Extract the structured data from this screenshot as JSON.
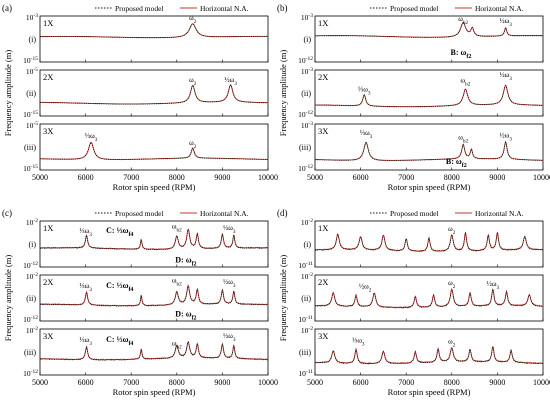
{
  "chart_data": [
    {
      "type": "line",
      "panel": "(a)",
      "ylabel": "Frequency amplitude (m)",
      "xlabel": "Rotor spin speed (RPM)",
      "legend": [
        "Proposed model",
        "Horizontal N.A."
      ],
      "xticks": [
        "5000",
        "6000",
        "7000",
        "8000",
        "9000",
        "10000"
      ],
      "xlim": [
        5000,
        10000
      ],
      "rows": [
        {
          "tag": "1X",
          "roman": "(i)",
          "ytop": "10",
          "ytop_exp": "-3",
          "ybot": "10",
          "ybot_exp": "-15",
          "ylog": [
            -15,
            -3
          ],
          "base": -8.5,
          "peaks": [
            {
              "x": 8350,
              "h": 3.6,
              "w": 90
            }
          ],
          "annotations": [
            {
              "text": "ω2",
              "x": 8350,
              "y": -4.0
            }
          ]
        },
        {
          "tag": "2X",
          "roman": "(ii)",
          "ytop": "10",
          "ytop_exp": "-5",
          "ybot": "10",
          "ybot_exp": "-15",
          "ylog": [
            -15,
            -5
          ],
          "base": -12.2,
          "peaks": [
            {
              "x": 8350,
              "h": 3.8,
              "w": 60
            },
            {
              "x": 9180,
              "h": 3.8,
              "w": 60
            }
          ],
          "annotations": [
            {
              "text": "ω2",
              "x": 8350,
              "y": -7.6
            },
            {
              "text": "½ω3",
              "x": 9180,
              "y": -7.6
            }
          ]
        },
        {
          "tag": "3X",
          "roman": "(iii)",
          "ytop": "10",
          "ytop_exp": "-5",
          "ybot": "10",
          "ybot_exp": "-15",
          "ylog": [
            -15,
            -5
          ],
          "base": -12.6,
          "peaks": [
            {
              "x": 6120,
              "h": 3.8,
              "w": 70
            },
            {
              "x": 8350,
              "h": 2.2,
              "w": 40
            }
          ],
          "annotations": [
            {
              "text": "⅓ω3",
              "x": 6120,
              "y": -8.0
            },
            {
              "text": "ω2",
              "x": 8350,
              "y": -9.6
            }
          ]
        }
      ]
    },
    {
      "type": "line",
      "panel": "(b)",
      "ylabel": "Frequency amplitude (m)",
      "xlabel": "Rotor spin speed (RPM)",
      "legend": [
        "Proposed model",
        "Horizontal N.A."
      ],
      "xticks": [
        "5000",
        "6000",
        "7000",
        "8000",
        "9000",
        "10000"
      ],
      "xlim": [
        5000,
        10000
      ],
      "rows": [
        {
          "tag": "1X",
          "roman": "(i)",
          "ytop": "10",
          "ytop_exp": "-3",
          "ybot": "10",
          "ybot_exp": "-12",
          "ylog": [
            -12,
            -3
          ],
          "base": -7.0,
          "peaks": [
            {
              "x": 8250,
              "h": 2.8,
              "w": 70
            },
            {
              "x": 8450,
              "h": 1.6,
              "w": 40
            },
            {
              "x": 9180,
              "h": 1.6,
              "w": 30
            }
          ],
          "annotations": [
            {
              "text": "ωb2",
              "x": 8250,
              "y": -4.0
            },
            {
              "text": "½ω3",
              "x": 9180,
              "y": -4.4
            },
            {
              "text": "B: ωf2",
              "x": 8200,
              "y": -10.6
            }
          ]
        },
        {
          "tag": "2X",
          "roman": "(ii)",
          "ytop": "10",
          "ytop_exp": "-3",
          "ybot": "10",
          "ybot_exp": "-12",
          "ylog": [
            -12,
            -3
          ],
          "base": -10.0,
          "peaks": [
            {
              "x": 6080,
              "h": 2.2,
              "w": 40
            },
            {
              "x": 8300,
              "h": 3.2,
              "w": 60
            },
            {
              "x": 9180,
              "h": 3.8,
              "w": 60
            }
          ],
          "annotations": [
            {
              "text": "⅓ω3",
              "x": 6080,
              "y": -7.2
            },
            {
              "text": "ωb2",
              "x": 8300,
              "y": -5.4
            },
            {
              "text": "½ω3",
              "x": 9180,
              "y": -4.4
            }
          ]
        },
        {
          "tag": "3X",
          "roman": "(iii)",
          "ytop": "10",
          "ytop_exp": "-3",
          "ybot": "10",
          "ybot_exp": "-12",
          "ylog": [
            -12,
            -3
          ],
          "base": -10.0,
          "peaks": [
            {
              "x": 6120,
              "h": 3.6,
              "w": 60
            },
            {
              "x": 8250,
              "h": 2.8,
              "w": 40
            },
            {
              "x": 8430,
              "h": 1.8,
              "w": 30
            },
            {
              "x": 9180,
              "h": 3.4,
              "w": 40
            }
          ],
          "annotations": [
            {
              "text": "⅓ω3",
              "x": 6120,
              "y": -5.2
            },
            {
              "text": "ωb2",
              "x": 8250,
              "y": -6.0
            },
            {
              "text": "½ω3",
              "x": 9180,
              "y": -5.6
            },
            {
              "text": "B: ωf2",
              "x": 8100,
              "y": -10.8
            }
          ]
        }
      ]
    },
    {
      "type": "line",
      "panel": "(c)",
      "ylabel": "Frequency amplitude (m)",
      "xlabel": "Rotor spin speed (RPM)",
      "legend": [
        "Proposed model",
        "Horizontal N.A."
      ],
      "xticks": [
        "5000",
        "6000",
        "7000",
        "8000",
        "9000",
        "10000"
      ],
      "xlim": [
        5000,
        10000
      ],
      "rows": [
        {
          "tag": "1X",
          "roman": "(i)",
          "ytop": "10",
          "ytop_exp": "-2",
          "ybot": "10",
          "ybot_exp": "-12",
          "ylog": [
            -12,
            -2
          ],
          "base": -8.0,
          "peaks": [
            {
              "x": 6020,
              "h": 2.8,
              "w": 30
            },
            {
              "x": 7220,
              "h": 2.2,
              "w": 20
            },
            {
              "x": 8000,
              "h": 2.8,
              "w": 40
            },
            {
              "x": 8250,
              "h": 4.2,
              "w": 40
            },
            {
              "x": 8450,
              "h": 3.2,
              "w": 30
            },
            {
              "x": 9000,
              "h": 3.0,
              "w": 30
            },
            {
              "x": 9250,
              "h": 2.8,
              "w": 25
            }
          ],
          "annotations": [
            {
              "text": "⅓ω3",
              "x": 6000,
              "y": -4.6
            },
            {
              "text": "C: ⅓ωf4",
              "x": 6750,
              "y": -4.6
            },
            {
              "text": "ωb2",
              "x": 8000,
              "y": -3.6
            },
            {
              "text": "½ω3",
              "x": 9150,
              "y": -4.0
            },
            {
              "text": "D: ωf2",
              "x": 8200,
              "y": -11.0
            }
          ]
        },
        {
          "tag": "2X",
          "roman": "(ii)",
          "ytop": "10",
          "ytop_exp": "-2",
          "ybot": "10",
          "ybot_exp": "-12",
          "ylog": [
            -12,
            -2
          ],
          "base": -8.5,
          "peaks": [
            {
              "x": 6020,
              "h": 2.8,
              "w": 30
            },
            {
              "x": 7220,
              "h": 2.2,
              "w": 20
            },
            {
              "x": 8000,
              "h": 2.8,
              "w": 40
            },
            {
              "x": 8250,
              "h": 4.0,
              "w": 40
            },
            {
              "x": 8450,
              "h": 3.2,
              "w": 30
            },
            {
              "x": 9000,
              "h": 3.0,
              "w": 30
            },
            {
              "x": 9250,
              "h": 2.8,
              "w": 25
            }
          ],
          "annotations": [
            {
              "text": "⅓ω3",
              "x": 6000,
              "y": -4.8
            },
            {
              "text": "C: ⅓ωf4",
              "x": 6750,
              "y": -4.8
            },
            {
              "text": "ωb2",
              "x": 8000,
              "y": -3.6
            },
            {
              "text": "½ω3",
              "x": 9150,
              "y": -4.0
            },
            {
              "text": "D: ωf2",
              "x": 8200,
              "y": -11.0
            }
          ]
        },
        {
          "tag": "3X",
          "roman": "(iii)",
          "ytop": "10",
          "ytop_exp": "-2",
          "ybot": "10",
          "ybot_exp": "-12",
          "ylog": [
            -12,
            -2
          ],
          "base": -8.5,
          "peaks": [
            {
              "x": 6020,
              "h": 2.8,
              "w": 30
            },
            {
              "x": 7220,
              "h": 2.2,
              "w": 20
            },
            {
              "x": 8000,
              "h": 2.8,
              "w": 40
            },
            {
              "x": 8250,
              "h": 3.4,
              "w": 40
            },
            {
              "x": 8450,
              "h": 3.0,
              "w": 30
            },
            {
              "x": 9000,
              "h": 3.0,
              "w": 30
            },
            {
              "x": 9250,
              "h": 2.8,
              "w": 25
            }
          ],
          "annotations": [
            {
              "text": "⅓ω3",
              "x": 6000,
              "y": -4.8
            },
            {
              "text": "C: ⅓ωf4",
              "x": 6750,
              "y": -4.8
            },
            {
              "text": "ωb2",
              "x": 8000,
              "y": -5.6
            },
            {
              "text": "½ω3",
              "x": 9150,
              "y": -4.0
            }
          ]
        }
      ]
    },
    {
      "type": "line",
      "panel": "(d)",
      "ylabel": "Frequency amplitude (m)",
      "xlabel": "Rotor spin speed (RPM)",
      "legend": [
        "Proposed model",
        "Horizontal N.A."
      ],
      "xticks": [
        "5000",
        "6000",
        "7000",
        "8000",
        "9000",
        "10000"
      ],
      "xlim": [
        5000,
        10000
      ],
      "rows": [
        {
          "tag": "1X",
          "roman": "(i)",
          "ytop": "10",
          "ytop_exp": "-2",
          "ybot": "10",
          "ybot_exp": "-11",
          "ylog": [
            -11,
            -2
          ],
          "base": -7.8,
          "peaks": [
            {
              "x": 5500,
              "h": 3.0,
              "w": 40
            },
            {
              "x": 6000,
              "h": 2.6,
              "w": 40
            },
            {
              "x": 6500,
              "h": 3.0,
              "w": 40
            },
            {
              "x": 7000,
              "h": 2.4,
              "w": 30
            },
            {
              "x": 7500,
              "h": 2.6,
              "w": 30
            },
            {
              "x": 8000,
              "h": 3.2,
              "w": 40
            },
            {
              "x": 8300,
              "h": 3.6,
              "w": 30
            },
            {
              "x": 8800,
              "h": 3.0,
              "w": 30
            },
            {
              "x": 9000,
              "h": 3.4,
              "w": 30
            },
            {
              "x": 9600,
              "h": 2.6,
              "w": 40
            }
          ],
          "annotations": [
            {
              "text": "ω2",
              "x": 8000,
              "y": -4.0
            }
          ]
        },
        {
          "tag": "2X",
          "roman": "(ii)",
          "ytop": "10",
          "ytop_exp": "-2",
          "ybot": "10",
          "ybot_exp": "-11",
          "ylog": [
            -11,
            -2
          ],
          "base": -8.2,
          "peaks": [
            {
              "x": 5400,
              "h": 2.6,
              "w": 40
            },
            {
              "x": 5900,
              "h": 2.2,
              "w": 30
            },
            {
              "x": 6300,
              "h": 2.8,
              "w": 40
            },
            {
              "x": 7200,
              "h": 2.2,
              "w": 30
            },
            {
              "x": 7600,
              "h": 2.4,
              "w": 30
            },
            {
              "x": 8000,
              "h": 3.4,
              "w": 40
            },
            {
              "x": 8400,
              "h": 2.6,
              "w": 30
            },
            {
              "x": 8900,
              "h": 3.2,
              "w": 30
            },
            {
              "x": 9200,
              "h": 2.8,
              "w": 30
            },
            {
              "x": 9700,
              "h": 2.2,
              "w": 40
            }
          ],
          "annotations": [
            {
              "text": "½ω2",
              "x": 6100,
              "y": -4.6
            },
            {
              "text": "ω2",
              "x": 8000,
              "y": -4.0
            },
            {
              "text": "½ω3",
              "x": 8900,
              "y": -4.2
            }
          ]
        },
        {
          "tag": "3X",
          "roman": "(iii)",
          "ytop": "10",
          "ytop_exp": "-2",
          "ybot": "10",
          "ybot_exp": "-11",
          "ylog": [
            -11,
            -2
          ],
          "base": -8.6,
          "peaks": [
            {
              "x": 5400,
              "h": 2.4,
              "w": 40
            },
            {
              "x": 5900,
              "h": 2.8,
              "w": 30
            },
            {
              "x": 6500,
              "h": 2.4,
              "w": 40
            },
            {
              "x": 7200,
              "h": 2.2,
              "w": 30
            },
            {
              "x": 7700,
              "h": 2.6,
              "w": 30
            },
            {
              "x": 8000,
              "h": 2.8,
              "w": 40
            },
            {
              "x": 8400,
              "h": 2.4,
              "w": 30
            },
            {
              "x": 8900,
              "h": 3.0,
              "w": 30
            },
            {
              "x": 9300,
              "h": 2.4,
              "w": 30
            }
          ],
          "annotations": [
            {
              "text": "⅓ω3",
              "x": 5950,
              "y": -4.6
            },
            {
              "text": "ω2",
              "x": 8000,
              "y": -4.8
            }
          ]
        }
      ]
    }
  ],
  "colors": {
    "proposed": "#111111",
    "horizontal": "#c0392b",
    "axis": "#000000"
  }
}
